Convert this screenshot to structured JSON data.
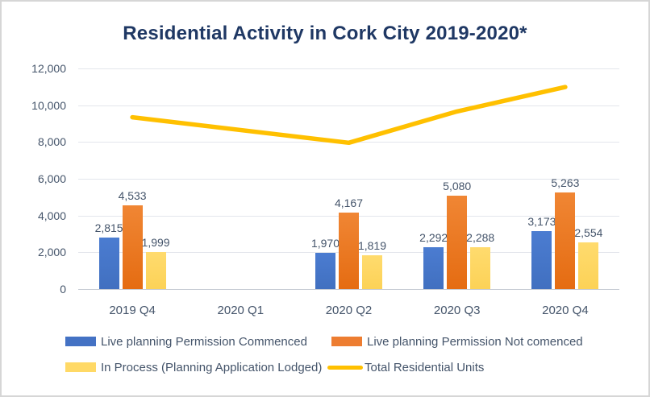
{
  "chart_data": {
    "type": "bar",
    "subtype": "combo-bar-line",
    "title": "Residential Activity in Cork City 2019-2020*",
    "categories": [
      "2019 Q4",
      "2020 Q1",
      "2020 Q2",
      "2020 Q3",
      "2020 Q4"
    ],
    "bar_series": [
      {
        "name": "Live planning Permission Commenced",
        "color": "#4472C4",
        "values": [
          2815,
          null,
          1970,
          2292,
          3173
        ],
        "labels": [
          "2,815",
          "",
          "1,970",
          "2,292",
          "3,173"
        ]
      },
      {
        "name": "Live planning Permission Not comenced",
        "color": "#ED7D31",
        "values": [
          4533,
          null,
          4167,
          5080,
          5263
        ],
        "labels": [
          "4,533",
          "",
          "4,167",
          "5,080",
          "5,263"
        ]
      },
      {
        "name": "In Process (Planning Application Lodged)",
        "color": "#FFD966",
        "values": [
          1999,
          null,
          1819,
          2288,
          2554
        ],
        "labels": [
          "1,999",
          "",
          "1,819",
          "2,288",
          "2,554"
        ]
      }
    ],
    "line_series": {
      "name": "Total Residential Units",
      "color": "#FFC000",
      "values": [
        9347,
        null,
        7956,
        9660,
        10990
      ]
    },
    "y_axis": {
      "min": 0,
      "max": 12000,
      "step": 2000,
      "tick_labels": [
        "0",
        "2,000",
        "4,000",
        "6,000",
        "8,000",
        "10,000",
        "12,000"
      ]
    },
    "xlabel": "",
    "ylabel": "",
    "ylim": [
      0,
      12000
    ],
    "grid": true,
    "legend_position": "bottom"
  },
  "colors": {
    "title_text": "#1F3864",
    "axis_text": "#44546A",
    "gridline": "#E3E6EC",
    "axis_line": "#C9CED6",
    "frame_border": "#D6D6D6",
    "background": "#FFFFFF"
  }
}
